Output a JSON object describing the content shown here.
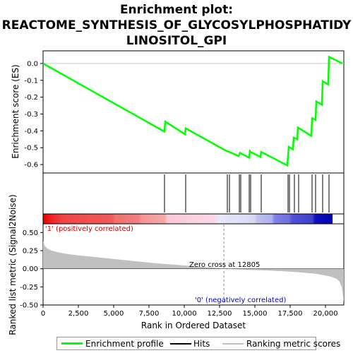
{
  "title_lines": [
    "Enrichment plot:",
    "REACTOME_SYNTHESIS_OF_GLYCOSYLPHOSPHATIDY",
    "LINOSITOL_GPI"
  ],
  "colors": {
    "es_line": "#00ff00",
    "hits": "#000000",
    "metric_fill": "#c0c0c0",
    "positive_label": "#cc0000",
    "negative_label": "#0000cc",
    "zero_cross_line": "#888888"
  },
  "chart_data": {
    "type": "line",
    "n_genes": 21300,
    "x_ticks": [
      0,
      2500,
      5000,
      7500,
      10000,
      12500,
      15000,
      17500,
      20000
    ],
    "x_tick_labels": [
      "0",
      "2,500",
      "5,000",
      "7,500",
      "10,000",
      "12,500",
      "15,000",
      "17,500",
      "20,000"
    ],
    "xlabel": "Rank in Ordered Dataset",
    "es_panel": {
      "ylabel": "Enrichment score (ES)",
      "ylim": [
        -0.65,
        0.075
      ],
      "y_ticks": [
        0.0,
        -0.1,
        -0.2,
        -0.3,
        -0.4,
        -0.5,
        -0.6
      ],
      "y_tick_labels": [
        "0.0",
        "-0.1",
        "-0.2",
        "-0.3",
        "-0.4",
        "-0.5",
        "-0.6"
      ],
      "x": [
        0,
        8600,
        8650,
        10050,
        10100,
        13000,
        13200,
        13850,
        13950,
        14050,
        14600,
        14650,
        14700,
        15400,
        15450,
        17300,
        17350,
        17400,
        17700,
        17750,
        18000,
        18050,
        19000,
        19050,
        19300,
        19350,
        19750,
        19800,
        20200,
        20250,
        21200
      ],
      "es": [
        0.0,
        -0.405,
        -0.345,
        -0.42,
        -0.385,
        -0.52,
        -0.525,
        -0.55,
        -0.53,
        -0.535,
        -0.56,
        -0.52,
        -0.525,
        -0.555,
        -0.525,
        -0.605,
        -0.55,
        -0.495,
        -0.51,
        -0.44,
        -0.45,
        -0.38,
        -0.43,
        -0.325,
        -0.335,
        -0.225,
        -0.245,
        -0.105,
        -0.125,
        0.04,
        0.0
      ]
    },
    "hits": [
      8600,
      10100,
      13050,
      13200,
      13900,
      14000,
      14600,
      14700,
      15450,
      17350,
      17450,
      17800,
      18100,
      19050,
      19300,
      19800,
      20250
    ],
    "metric_panel": {
      "ylabel": "Ranked list metric (Signal2Noise)",
      "ylim": [
        -0.5,
        0.62
      ],
      "y_ticks": [
        0.5,
        0.25,
        0.0,
        -0.25,
        -0.5
      ],
      "y_tick_labels": [
        "0.50",
        "0.25",
        "0.00",
        "-0.25",
        "-0.50"
      ],
      "x": [
        0,
        100,
        300,
        600,
        1000,
        1500,
        2500,
        4000,
        6000,
        8000,
        10000,
        12000,
        12805,
        14000,
        16000,
        17500,
        18500,
        19300,
        19900,
        20400,
        20800,
        21000,
        21150,
        21250,
        21300
      ],
      "metric": [
        0.38,
        0.32,
        0.28,
        0.25,
        0.23,
        0.21,
        0.185,
        0.155,
        0.115,
        0.075,
        0.045,
        0.015,
        0.0,
        -0.01,
        -0.025,
        -0.04,
        -0.055,
        -0.07,
        -0.09,
        -0.11,
        -0.14,
        -0.18,
        -0.25,
        -0.38,
        -0.46
      ]
    },
    "zero_cross_label": "Zero cross at 12805",
    "positive_label": "'1' (positively correlated)",
    "negative_label": "'0' (negatively correlated)",
    "legend": [
      {
        "label": "Enrichment profile",
        "kind": "es"
      },
      {
        "label": "Hits",
        "kind": "hits"
      },
      {
        "label": "Ranking metric scores",
        "kind": "metric"
      }
    ]
  }
}
